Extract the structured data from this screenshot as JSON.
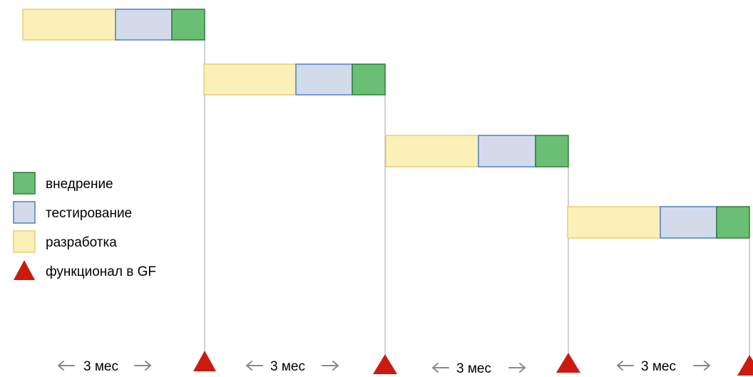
{
  "colors": {
    "development_fill": "#fbf0b8",
    "development_stroke": "#e8cd78",
    "testing_fill": "#d3dbea",
    "testing_stroke": "#4f7fc3",
    "deployment_fill": "#6abf74",
    "deployment_stroke": "#2e7d3c",
    "release_marker": "#cc1a0e",
    "period_arrow": "#8a8a8a",
    "milestone_line": "#b5b5b5"
  },
  "legend": {
    "deployment": "внедрение",
    "testing": "тестирование",
    "development": "разработка",
    "release": "функционал в GF"
  },
  "periods": [
    "3 мес",
    "3 мес",
    "3 мес",
    "3 мес"
  ],
  "cycles": [
    {
      "phases": [
        "development",
        "testing",
        "deployment"
      ]
    },
    {
      "phases": [
        "development",
        "testing",
        "deployment"
      ]
    },
    {
      "phases": [
        "development",
        "testing",
        "deployment"
      ]
    },
    {
      "phases": [
        "development",
        "testing",
        "deployment"
      ]
    }
  ],
  "release_markers": 4
}
